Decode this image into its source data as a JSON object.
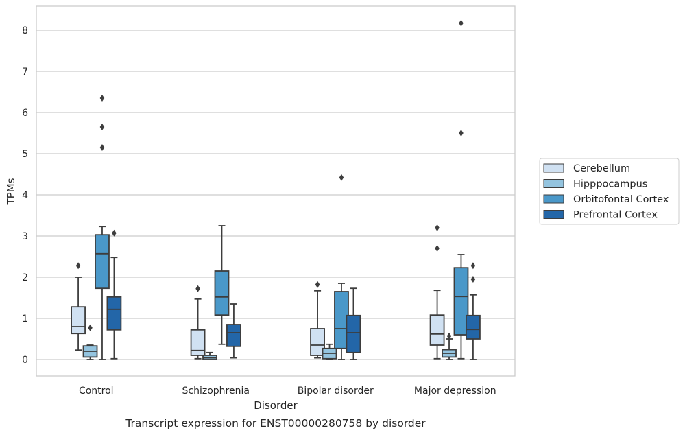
{
  "chart_data": {
    "type": "box",
    "title": "",
    "caption": "Transcript expression for ENST00000280758 by disorder",
    "xlabel": "Disorder",
    "ylabel": "TPMs",
    "ylim": [
      -0.4,
      8.6
    ],
    "yticks": [
      "0",
      "1",
      "2",
      "3",
      "4",
      "5",
      "6",
      "7",
      "8"
    ],
    "grid": "horizontal",
    "legend_position": "right",
    "categories": [
      "Control",
      "Schizophrenia",
      "Bipolar disorder",
      "Major depression"
    ],
    "series": [
      {
        "name": "Cerebellum",
        "color": "#d0e1f2",
        "boxes": [
          {
            "whisker_low": 0.23,
            "q1": 0.63,
            "median": 0.8,
            "q3": 1.28,
            "whisker_high": 2.0,
            "outliers": [
              2.28
            ]
          },
          {
            "whisker_low": 0.02,
            "q1": 0.1,
            "median": 0.22,
            "q3": 0.72,
            "whisker_high": 1.47,
            "outliers": [
              1.72
            ]
          },
          {
            "whisker_low": 0.04,
            "q1": 0.1,
            "median": 0.35,
            "q3": 0.75,
            "whisker_high": 1.67,
            "outliers": [
              1.82
            ]
          },
          {
            "whisker_low": 0.02,
            "q1": 0.35,
            "median": 0.62,
            "q3": 1.08,
            "whisker_high": 1.68,
            "outliers": [
              2.7,
              3.2
            ]
          }
        ]
      },
      {
        "name": "Hipppocampus",
        "color": "#94c4df",
        "boxes": [
          {
            "whisker_low": 0.0,
            "q1": 0.06,
            "median": 0.2,
            "q3": 0.33,
            "whisker_high": 0.35,
            "outliers": [
              0.77
            ]
          },
          {
            "whisker_low": 0.0,
            "q1": 0.0,
            "median": 0.04,
            "q3": 0.1,
            "whisker_high": 0.17,
            "outliers": []
          },
          {
            "whisker_low": 0.0,
            "q1": 0.02,
            "median": 0.15,
            "q3": 0.27,
            "whisker_high": 0.37,
            "outliers": []
          },
          {
            "whisker_low": 0.0,
            "q1": 0.06,
            "median": 0.15,
            "q3": 0.24,
            "whisker_high": 0.5,
            "outliers": [
              0.57
            ]
          }
        ]
      },
      {
        "name": "Orbitofontal Cortex",
        "color": "#4a98c9",
        "boxes": [
          {
            "whisker_low": 0.0,
            "q1": 1.73,
            "median": 2.57,
            "q3": 3.03,
            "whisker_high": 3.23,
            "outliers": [
              5.15,
              5.65,
              6.35
            ]
          },
          {
            "whisker_low": 0.37,
            "q1": 1.08,
            "median": 1.52,
            "q3": 2.15,
            "whisker_high": 3.25,
            "outliers": []
          },
          {
            "whisker_low": 0.0,
            "q1": 0.27,
            "median": 0.75,
            "q3": 1.65,
            "whisker_high": 1.85,
            "outliers": [
              4.42
            ]
          },
          {
            "whisker_low": 0.02,
            "q1": 0.6,
            "median": 1.53,
            "q3": 2.23,
            "whisker_high": 2.55,
            "outliers": [
              5.5,
              8.17
            ]
          }
        ]
      },
      {
        "name": "Prefrontal Cortex",
        "color": "#2366a8",
        "boxes": [
          {
            "whisker_low": 0.02,
            "q1": 0.72,
            "median": 1.22,
            "q3": 1.52,
            "whisker_high": 2.48,
            "outliers": [
              3.07
            ]
          },
          {
            "whisker_low": 0.04,
            "q1": 0.32,
            "median": 0.65,
            "q3": 0.85,
            "whisker_high": 1.35,
            "outliers": []
          },
          {
            "whisker_low": 0.0,
            "q1": 0.17,
            "median": 0.65,
            "q3": 1.07,
            "whisker_high": 1.73,
            "outliers": []
          },
          {
            "whisker_low": 0.0,
            "q1": 0.5,
            "median": 0.73,
            "q3": 1.07,
            "whisker_high": 1.57,
            "outliers": [
              1.95,
              2.28
            ]
          }
        ]
      }
    ]
  }
}
